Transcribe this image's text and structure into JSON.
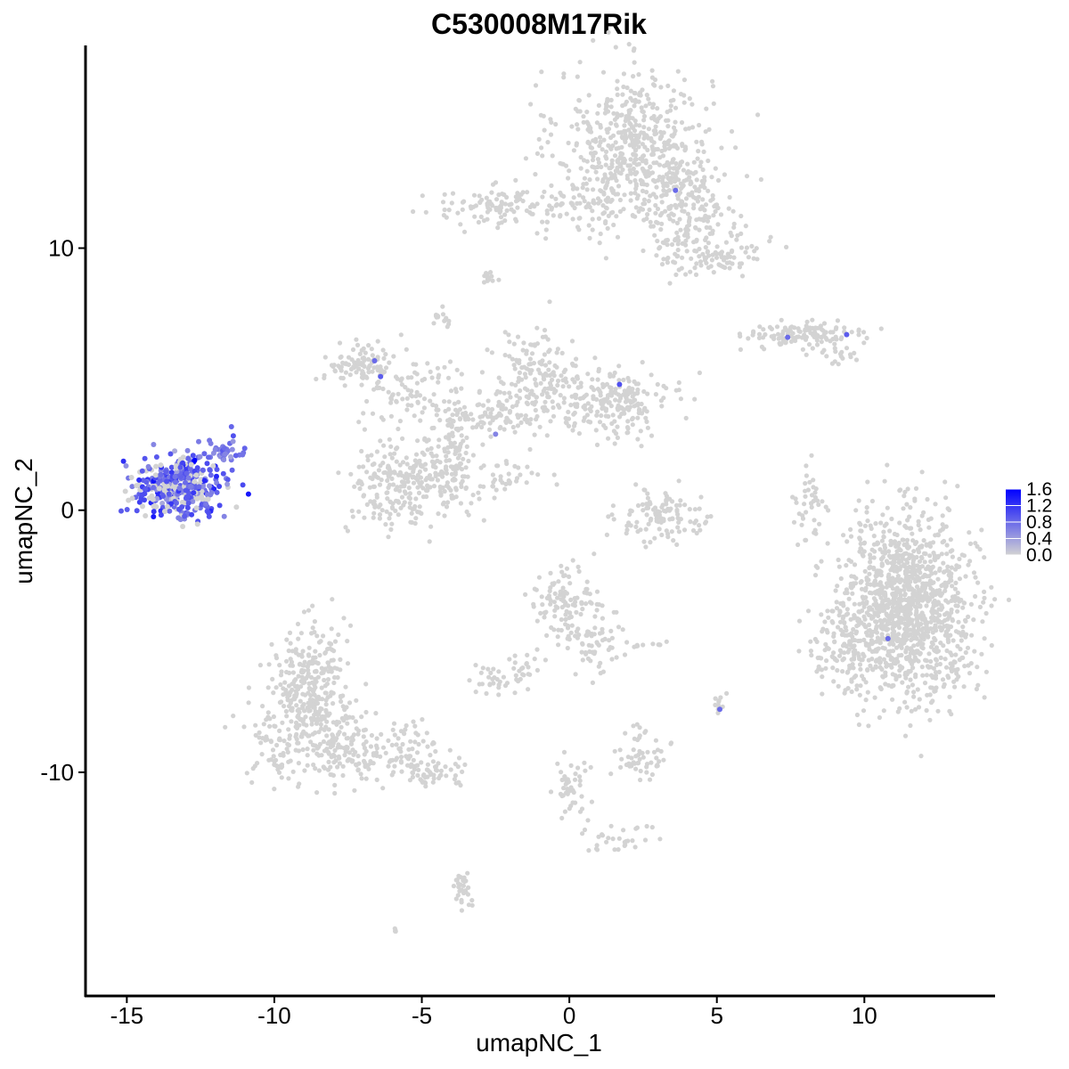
{
  "chart_data": {
    "type": "scatter",
    "title": "C530008M17Rik",
    "xlabel": "umapNC_1",
    "ylabel": "umapNC_2",
    "xlim": [
      -16.4,
      14.4
    ],
    "ylim": [
      -18.5,
      17.7
    ],
    "x_ticks": [
      -15,
      -10,
      -5,
      0,
      5,
      10
    ],
    "x_tick_labels": [
      "-15",
      "-10",
      "-5",
      "0",
      "5",
      "10"
    ],
    "y_ticks": [
      -10,
      0,
      10
    ],
    "y_tick_labels": [
      "-10",
      "0",
      "10"
    ],
    "grid": false,
    "legend": {
      "position": "right",
      "type": "colorbar",
      "min": 0.0,
      "max": 1.6,
      "ticks": [
        0.0,
        0.4,
        0.8,
        1.2,
        1.6
      ],
      "tick_labels": [
        "0.0",
        "0.4",
        "0.8",
        "1.2",
        "1.6"
      ],
      "colors": {
        "low": "#d3d3d3",
        "high": "#0000ff"
      }
    },
    "clusters": [
      {
        "cx": 2.2,
        "cy": 14.0,
        "sx": 1.3,
        "sy": 1.4,
        "n": 520
      },
      {
        "cx": 3.9,
        "cy": 11.8,
        "sx": 0.9,
        "sy": 0.8,
        "n": 160
      },
      {
        "cx": 4.8,
        "cy": 9.9,
        "sx": 0.9,
        "sy": 0.5,
        "n": 120
      },
      {
        "cx": -2.3,
        "cy": 11.6,
        "sx": 1.3,
        "sy": 0.35,
        "n": 110
      },
      {
        "cx": 0.9,
        "cy": 11.5,
        "sx": 0.9,
        "sy": 0.7,
        "n": 80
      },
      {
        "cx": -2.7,
        "cy": 8.9,
        "sx": 0.2,
        "sy": 0.15,
        "n": 15
      },
      {
        "cx": -4.4,
        "cy": 7.3,
        "sx": 0.15,
        "sy": 0.2,
        "n": 15
      },
      {
        "cx": 8.0,
        "cy": 6.7,
        "sx": 1.0,
        "sy": 0.25,
        "n": 120
      },
      {
        "cx": 8.9,
        "cy": 6.0,
        "sx": 0.4,
        "sy": 0.3,
        "n": 20
      },
      {
        "cx": -7.1,
        "cy": 5.6,
        "sx": 0.6,
        "sy": 0.35,
        "n": 90
      },
      {
        "cx": -5.4,
        "cy": 4.5,
        "sx": 0.9,
        "sy": 0.7,
        "n": 90
      },
      {
        "cx": -1.2,
        "cy": 5.3,
        "sx": 0.8,
        "sy": 0.8,
        "n": 110
      },
      {
        "cx": 1.8,
        "cy": 4.0,
        "sx": 0.8,
        "sy": 0.6,
        "n": 150
      },
      {
        "cx": 0.0,
        "cy": 4.4,
        "sx": 1.4,
        "sy": 0.6,
        "n": 120
      },
      {
        "cx": -2.6,
        "cy": 3.6,
        "sx": 1.0,
        "sy": 0.5,
        "n": 80
      },
      {
        "cx": -6.0,
        "cy": 0.8,
        "sx": 0.8,
        "sy": 0.9,
        "n": 170
      },
      {
        "cx": -4.4,
        "cy": 1.4,
        "sx": 0.7,
        "sy": 0.8,
        "n": 150
      },
      {
        "cx": -3.8,
        "cy": 3.1,
        "sx": 0.3,
        "sy": 0.8,
        "n": 40
      },
      {
        "cx": -2.3,
        "cy": 1.2,
        "sx": 0.8,
        "sy": 0.35,
        "n": 35
      },
      {
        "cx": 3.3,
        "cy": -0.3,
        "sx": 0.8,
        "sy": 0.5,
        "n": 110
      },
      {
        "cx": 8.2,
        "cy": 0.4,
        "sx": 0.25,
        "sy": 0.8,
        "n": 40
      },
      {
        "cx": -0.3,
        "cy": -3.6,
        "sx": 0.6,
        "sy": 0.7,
        "n": 110
      },
      {
        "cx": 1.0,
        "cy": -4.9,
        "sx": 0.5,
        "sy": 0.7,
        "n": 60
      },
      {
        "cx": -2.6,
        "cy": -6.5,
        "sx": 0.3,
        "sy": 0.3,
        "n": 25
      },
      {
        "cx": -1.6,
        "cy": -6.1,
        "sx": 0.35,
        "sy": 0.4,
        "n": 25
      },
      {
        "cx": 2.9,
        "cy": -5.1,
        "sx": 0.3,
        "sy": 0.1,
        "n": 10
      },
      {
        "cx": 5.0,
        "cy": -7.4,
        "sx": 0.15,
        "sy": 0.2,
        "n": 10
      },
      {
        "cx": 2.5,
        "cy": -9.5,
        "sx": 0.5,
        "sy": 0.35,
        "n": 45
      },
      {
        "cx": 2.3,
        "cy": -8.6,
        "sx": 0.2,
        "sy": 0.2,
        "n": 10
      },
      {
        "cx": 0.0,
        "cy": -10.5,
        "sx": 0.3,
        "sy": 0.9,
        "n": 45
      },
      {
        "cx": 1.5,
        "cy": -12.4,
        "sx": 0.6,
        "sy": 0.3,
        "n": 30
      },
      {
        "cx": -3.6,
        "cy": -14.7,
        "sx": 0.15,
        "sy": 0.6,
        "n": 30
      },
      {
        "cx": -6.0,
        "cy": -16.0,
        "sx": 0.1,
        "sy": 0.1,
        "n": 4
      },
      {
        "cx": -8.8,
        "cy": -6.4,
        "sx": 0.6,
        "sy": 1.0,
        "n": 240
      },
      {
        "cx": -8.9,
        "cy": -8.6,
        "sx": 1.0,
        "sy": 0.9,
        "n": 230
      },
      {
        "cx": -6.3,
        "cy": -9.3,
        "sx": 1.2,
        "sy": 0.5,
        "n": 130
      },
      {
        "cx": -4.6,
        "cy": -10.0,
        "sx": 0.6,
        "sy": 0.25,
        "n": 50
      },
      {
        "cx": 11.5,
        "cy": -3.6,
        "sx": 1.1,
        "sy": 1.7,
        "n": 1200
      },
      {
        "cx": 9.3,
        "cy": -5.2,
        "sx": 0.6,
        "sy": 0.9,
        "n": 130
      }
    ],
    "expressing_cluster": {
      "cx": -13.2,
      "cy": 0.9,
      "sx": 0.75,
      "sy": 0.55,
      "n": 420,
      "mean_expr": 0.85
    },
    "expressing_points": [
      [
        -12.7,
        1.9,
        1.6
      ],
      [
        3.6,
        12.2,
        0.8
      ],
      [
        -6.6,
        5.7,
        0.8
      ],
      [
        -6.4,
        5.1,
        0.9
      ],
      [
        1.7,
        4.8,
        1.0
      ],
      [
        -2.5,
        2.9,
        0.6
      ],
      [
        7.4,
        6.6,
        0.8
      ],
      [
        9.4,
        6.7,
        0.9
      ],
      [
        10.8,
        -4.9,
        0.8
      ],
      [
        5.1,
        -7.6,
        0.8
      ]
    ]
  }
}
